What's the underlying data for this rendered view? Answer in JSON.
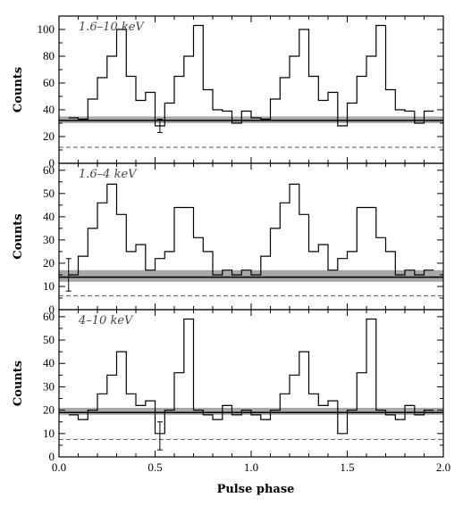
{
  "figure": {
    "xlabel": "Pulse phase",
    "x_ticks": [
      "0.0",
      "0.5",
      "1.0",
      "1.5",
      "2.0"
    ]
  },
  "chart_data": [
    {
      "type": "line",
      "label": "1.6–10 keV",
      "ylabel": "Counts",
      "xlim": [
        0.0,
        2.0
      ],
      "ylim": [
        0,
        110
      ],
      "y_ticks": [
        0,
        10,
        20,
        30,
        40,
        50,
        60,
        70,
        80,
        90,
        100
      ],
      "y_tick_labels": [
        "0",
        "20",
        "40",
        "60",
        "80",
        "100"
      ],
      "bin_width": 0.05,
      "values": [
        34,
        33,
        48,
        64,
        80,
        100,
        65,
        47,
        53,
        28,
        45,
        65,
        80,
        103,
        55,
        40,
        39,
        30,
        39,
        34,
        33,
        48,
        64,
        80,
        100,
        65,
        47,
        53,
        28,
        45,
        65,
        80,
        103,
        55,
        40,
        39,
        30,
        39
      ],
      "bins_start": 0.05,
      "background_mean": 32,
      "background_band": [
        30,
        35
      ],
      "dashed_level": 12,
      "error_bar": {
        "x": 0.525,
        "y": 28,
        "low": 23,
        "high": 33
      }
    },
    {
      "type": "line",
      "label": "1.6–4 keV",
      "ylabel": "Counts",
      "xlim": [
        0.0,
        2.0
      ],
      "ylim": [
        0,
        63
      ],
      "y_ticks": [
        0,
        5,
        10,
        15,
        20,
        25,
        30,
        35,
        40,
        45,
        50,
        55,
        60
      ],
      "y_tick_labels": [
        "0",
        "10",
        "20",
        "30",
        "40",
        "50",
        "60"
      ],
      "bin_width": 0.05,
      "values": [
        15,
        23,
        35,
        46,
        54,
        41,
        25,
        28,
        17,
        22,
        25,
        44,
        44,
        31,
        25,
        15,
        17,
        15,
        17,
        15,
        23,
        35,
        46,
        54,
        41,
        25,
        28,
        17,
        22,
        25,
        44,
        44,
        31,
        25,
        15,
        17,
        15,
        17
      ],
      "bins_start": 0.05,
      "background_mean": 14,
      "background_band": [
        12,
        17
      ],
      "dashed_level": 6,
      "error_bar": {
        "x": 0.05,
        "y": 15,
        "low": 8,
        "high": 22
      }
    },
    {
      "type": "line",
      "label": "4–10 keV",
      "ylabel": "Counts",
      "xlim": [
        0.0,
        2.0
      ],
      "ylim": [
        0,
        63
      ],
      "y_ticks": [
        0,
        5,
        10,
        15,
        20,
        25,
        30,
        35,
        40,
        45,
        50,
        55,
        60
      ],
      "y_tick_labels": [
        "0",
        "10",
        "20",
        "30",
        "40",
        "50",
        "60"
      ],
      "bin_width": 0.05,
      "values": [
        18,
        16,
        20,
        27,
        35,
        45,
        27,
        22,
        24,
        10,
        20,
        36,
        59,
        20,
        18,
        16,
        22,
        18,
        20,
        18,
        16,
        20,
        27,
        35,
        45,
        27,
        22,
        24,
        10,
        20,
        36,
        59,
        20,
        18,
        16,
        22,
        18,
        20
      ],
      "bins_start": 0.05,
      "background_mean": 19,
      "background_band": [
        18,
        21
      ],
      "dashed_level": 7.5,
      "error_bar": {
        "x": 0.525,
        "y": 9,
        "low": 3,
        "high": 15
      }
    }
  ]
}
